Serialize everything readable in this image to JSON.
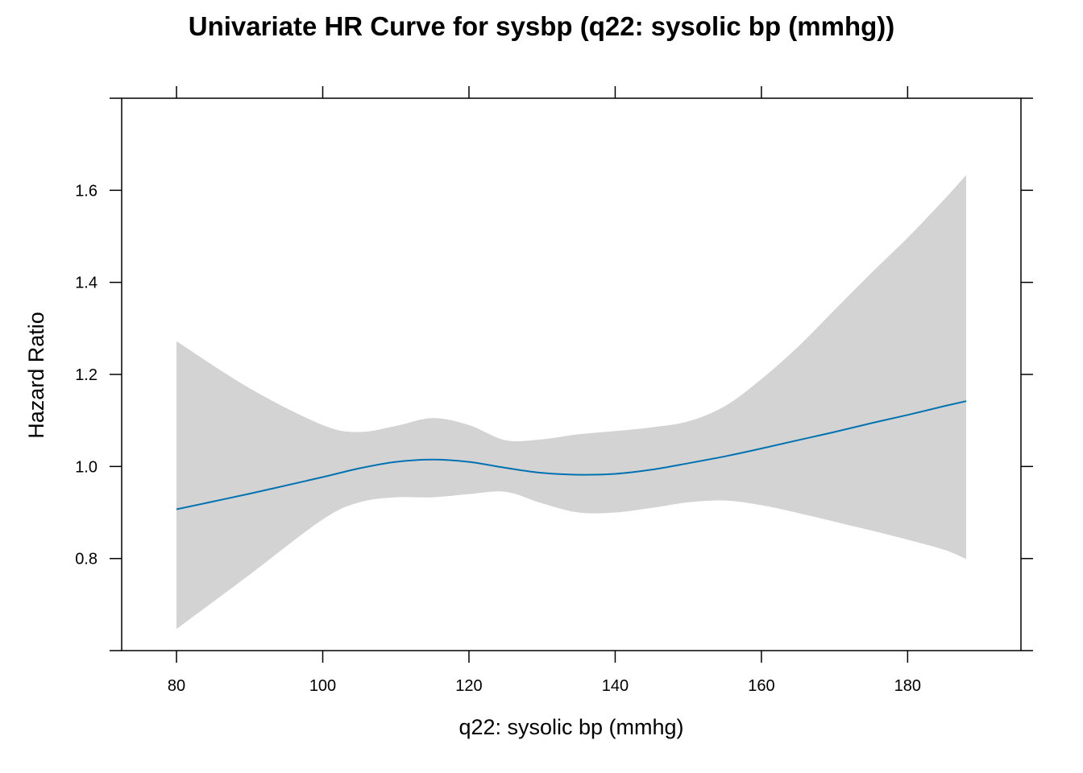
{
  "chart_data": {
    "type": "line",
    "title": "Univariate HR Curve for sysbp (q22: sysolic bp (mmhg))",
    "xlabel": "q22: sysolic bp (mmhg)",
    "ylabel": "Hazard Ratio",
    "xlim": [
      72.5,
      195.5
    ],
    "ylim": [
      0.6,
      1.8
    ],
    "x_ticks": [
      80,
      100,
      120,
      140,
      160,
      180
    ],
    "y_ticks": [
      0.8,
      1.0,
      1.2,
      1.4,
      1.6
    ],
    "x_tick_labels": [
      "80",
      "100",
      "120",
      "140",
      "160",
      "180"
    ],
    "y_tick_labels": [
      "0.8",
      "1.0",
      "1.2",
      "1.4",
      "1.6"
    ],
    "grid": false,
    "colors": {
      "line": "#0072b2",
      "band": "#d3d3d3",
      "axis": "#000000"
    },
    "series": [
      {
        "x": [
          80,
          90,
          100,
          105,
          110,
          115,
          120,
          125,
          130,
          135,
          140,
          145,
          150,
          155,
          160,
          165,
          170,
          175,
          180,
          185,
          188
        ],
        "hr": [
          0.907,
          0.941,
          0.977,
          0.996,
          1.01,
          1.015,
          1.01,
          0.997,
          0.986,
          0.982,
          0.984,
          0.993,
          1.007,
          1.022,
          1.039,
          1.057,
          1.075,
          1.094,
          1.112,
          1.131,
          1.142
        ],
        "lower": [
          0.647,
          0.765,
          0.885,
          0.922,
          0.933,
          0.933,
          0.94,
          0.945,
          0.92,
          0.9,
          0.9,
          0.91,
          0.922,
          0.926,
          0.916,
          0.899,
          0.88,
          0.861,
          0.841,
          0.819,
          0.799
        ],
        "upper": [
          1.272,
          1.17,
          1.09,
          1.075,
          1.088,
          1.105,
          1.09,
          1.057,
          1.059,
          1.07,
          1.077,
          1.085,
          1.098,
          1.131,
          1.19,
          1.26,
          1.34,
          1.42,
          1.497,
          1.58,
          1.633
        ]
      }
    ]
  }
}
